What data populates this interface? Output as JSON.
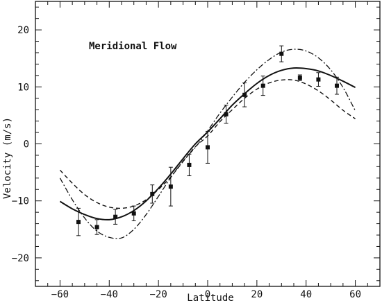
{
  "chart_data": {
    "type": "scatter",
    "title": "",
    "annotation": "Meridional Flow",
    "xlabel": "Latitude",
    "ylabel": "Velocity   (m/s)",
    "xlim": [
      -70,
      70
    ],
    "ylim": [
      -25,
      25
    ],
    "x_ticks": [
      -60,
      -40,
      -20,
      0,
      20,
      40,
      60
    ],
    "x_tick_labels": [
      "−60",
      "−40",
      "−20",
      "0",
      "20",
      "40",
      "60"
    ],
    "y_ticks": [
      -20,
      -10,
      0,
      10,
      20
    ],
    "y_tick_labels": [
      "−20",
      "−10",
      "0",
      "10",
      "20"
    ],
    "grid": false,
    "series": [
      {
        "style": "points-with-errorbars",
        "x": [
          -52.5,
          -45,
          -37.5,
          -30,
          -22.5,
          -15,
          -7.5,
          0,
          7.5,
          15,
          22.5,
          30,
          37.5,
          45,
          52.5
        ],
        "y": [
          -13.7,
          -14.6,
          -12.8,
          -12.2,
          -8.8,
          -7.5,
          -3.7,
          -0.6,
          5.2,
          8.6,
          10.2,
          15.8,
          11.6,
          11.3,
          10.2
        ],
        "err": [
          2.4,
          1.3,
          1.3,
          1.3,
          1.6,
          3.4,
          1.9,
          2.8,
          1.6,
          2.1,
          1.7,
          1.4,
          0.5,
          1.2,
          1.5
        ]
      },
      {
        "style": "solid",
        "x": [
          -60,
          -55,
          -50,
          -45,
          -40,
          -35,
          -30,
          -25,
          -20,
          -15,
          -10,
          -5,
          0,
          5,
          10,
          15,
          20,
          25,
          30,
          35,
          40,
          45,
          50,
          55,
          60
        ],
        "y": [
          -10.1,
          -11.4,
          -12.4,
          -13.1,
          -13.3,
          -12.8,
          -11.7,
          -10.0,
          -7.8,
          -5.3,
          -2.6,
          0.0,
          2.1,
          4.4,
          6.8,
          8.8,
          10.6,
          12.0,
          12.9,
          13.3,
          13.2,
          12.8,
          12.0,
          11.0,
          9.9
        ]
      },
      {
        "style": "dashed",
        "x": [
          -60,
          -55,
          -50,
          -45,
          -40,
          -35,
          -30,
          -25,
          -20,
          -15,
          -10,
          -5,
          0,
          5,
          10,
          15,
          20,
          25,
          30,
          35,
          40,
          45,
          50,
          55,
          60
        ],
        "y": [
          -4.6,
          -6.9,
          -8.9,
          -10.3,
          -11.1,
          -11.3,
          -10.9,
          -9.8,
          -8.0,
          -5.8,
          -3.1,
          -0.5,
          1.4,
          3.9,
          6.0,
          8.0,
          9.6,
          10.7,
          11.2,
          11.2,
          10.5,
          9.3,
          7.7,
          5.9,
          4.4
        ]
      },
      {
        "style": "dash-dot",
        "x": [
          -60,
          -55,
          -50,
          -45,
          -40,
          -35,
          -30,
          -25,
          -20,
          -15,
          -10,
          -5,
          0,
          5,
          10,
          15,
          20,
          25,
          30,
          35,
          40,
          45,
          50,
          55,
          60
        ],
        "y": [
          -6.0,
          -9.8,
          -13.0,
          -15.3,
          -16.4,
          -16.5,
          -15.0,
          -12.4,
          -9.2,
          -5.9,
          -3.0,
          -0.6,
          2.3,
          5.4,
          8.2,
          10.8,
          13.0,
          14.8,
          16.1,
          16.6,
          16.3,
          15.1,
          13.0,
          9.9,
          5.8
        ]
      }
    ]
  }
}
